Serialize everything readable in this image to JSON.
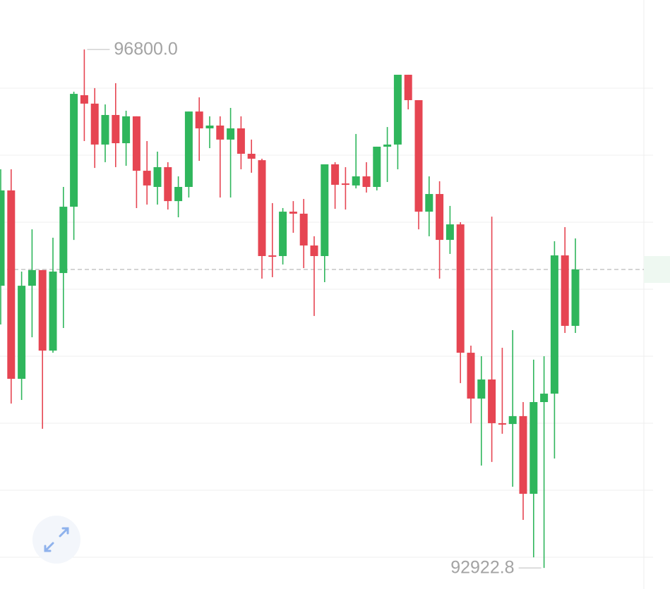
{
  "chart_data": {
    "type": "candlestick",
    "open": [
      95033,
      95746,
      94337,
      95033,
      95150,
      94548,
      95128,
      95624,
      96458,
      96395,
      96089,
      96310,
      96099,
      96300,
      95893,
      95772,
      95920,
      95666,
      95772,
      96336,
      96210,
      96231,
      96126,
      96210,
      96020,
      95972,
      95260,
      95255,
      95587,
      95572,
      95334,
      95255,
      95941,
      95798,
      95783,
      95851,
      95772,
      96073,
      96089,
      96611,
      96421,
      95587,
      95719,
      95376,
      95492,
      94532,
      94189,
      94332,
      94005,
      93999,
      94058,
      93477,
      94163,
      94226,
      95260,
      94733
    ],
    "high": [
      95904,
      95904,
      95139,
      95455,
      95150,
      95392,
      95772,
      96484,
      96800,
      96511,
      96389,
      96548,
      96342,
      96300,
      96115,
      96036,
      95957,
      95851,
      96336,
      96442,
      96300,
      96300,
      96363,
      96300,
      96126,
      95983,
      95651,
      95614,
      95666,
      95682,
      95403,
      95941,
      95957,
      95920,
      96168,
      95957,
      96073,
      96220,
      96611,
      96611,
      96421,
      95851,
      95814,
      95630,
      95508,
      94585,
      94506,
      95550,
      94569,
      94701,
      94163,
      94480,
      94506,
      95366,
      95471,
      95387
    ],
    "low": [
      94743,
      94152,
      94179,
      94648,
      93963,
      94532,
      94717,
      95376,
      96115,
      95914,
      95957,
      95920,
      95930,
      95614,
      95640,
      95640,
      95603,
      95545,
      95693,
      95967,
      96062,
      95693,
      95693,
      95904,
      95878,
      95086,
      95097,
      95192,
      95429,
      95165,
      94807,
      95060,
      95608,
      95603,
      95761,
      95730,
      95746,
      95809,
      95904,
      96352,
      95455,
      95403,
      95086,
      95271,
      94305,
      94005,
      93688,
      93715,
      93926,
      93530,
      93282,
      93002,
      92922.8,
      93741,
      94680,
      94680
    ],
    "close": [
      95746,
      94337,
      95033,
      95150,
      94548,
      95139,
      95624,
      96468,
      96395,
      96089,
      96310,
      96099,
      96300,
      95893,
      95783,
      95920,
      95666,
      95772,
      96336,
      96210,
      96231,
      96126,
      96210,
      96020,
      95983,
      95255,
      95255,
      95587,
      95572,
      95334,
      95255,
      95941,
      95788,
      95788,
      95851,
      95772,
      96073,
      96089,
      96611,
      96421,
      95587,
      95719,
      95376,
      95492,
      94532,
      94189,
      94332,
      94005,
      93999,
      94058,
      93477,
      94163,
      94226,
      95260,
      94733,
      95155
    ],
    "ylim": [
      92765,
      97170
    ],
    "up_color": "#2fb65c",
    "down_color": "#e64552",
    "annotations": [
      {
        "text": "96800.0",
        "value": 96800,
        "side": "high"
      },
      {
        "text": "92922.8",
        "value": 92922.8,
        "side": "low"
      }
    ]
  }
}
